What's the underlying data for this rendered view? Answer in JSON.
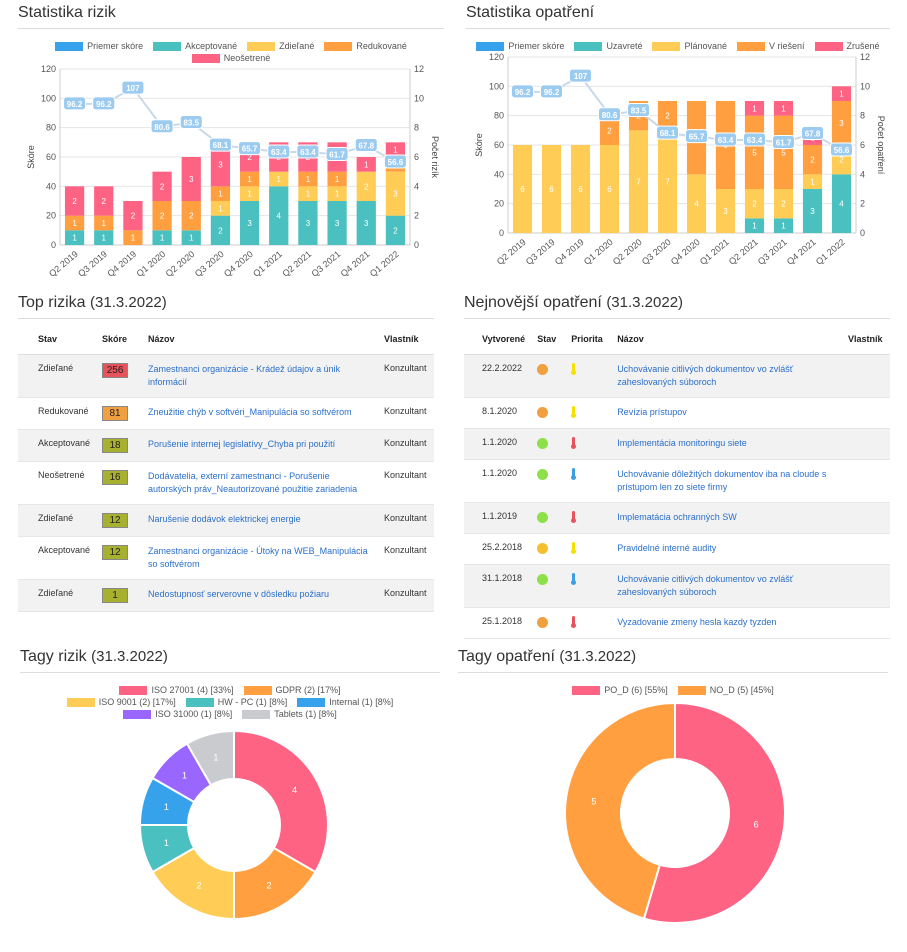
{
  "colors": {
    "avg": "#36a2eb",
    "accepted": "#4bc0c0",
    "shared": "#ffcd56",
    "reduced": "#ff9f40",
    "untreated": "#ff6384",
    "closed": "#4bc0c0",
    "planned": "#ffcd56",
    "solving": "#ff9f40",
    "cancelled": "#ff6384",
    "purple": "#9966ff",
    "grey": "#c9cbcf"
  },
  "risk_stats": {
    "title": "Statistika rizik",
    "chart_data": {
      "type": "bar",
      "stacked": true,
      "categories": [
        "Q2 2019",
        "Q3 2019",
        "Q4 2019",
        "Q1 2020",
        "Q2 2020",
        "Q3 2020",
        "Q4 2020",
        "Q1 2021",
        "Q2 2021",
        "Q3 2021",
        "Q4 2021",
        "Q1 2022"
      ],
      "ylabel": "Skóre",
      "y2label": "Počet rizík",
      "ylim": [
        0,
        120
      ],
      "y2lim": [
        0,
        12
      ],
      "yticks": [
        0,
        20,
        40,
        60,
        80,
        100,
        120
      ],
      "y2ticks": [
        0,
        2,
        4,
        6,
        8,
        10,
        12
      ],
      "series": [
        {
          "name": "Akceptované",
          "color": "#4bc0c0",
          "values": [
            1,
            1,
            0,
            1,
            1,
            2,
            3,
            4,
            3,
            3,
            3,
            2
          ]
        },
        {
          "name": "Zdieľané",
          "color": "#ffcd56",
          "values": [
            0,
            0,
            0,
            0,
            0,
            1,
            1,
            1,
            1,
            1,
            2,
            3
          ]
        },
        {
          "name": "Redukované",
          "color": "#ff9f40",
          "values": [
            1,
            1,
            1,
            2,
            2,
            1,
            1,
            0,
            1,
            1,
            0,
            1
          ]
        },
        {
          "name": "Neošetrené",
          "color": "#ff6384",
          "values": [
            2,
            2,
            2,
            2,
            3,
            3,
            2,
            2,
            2,
            2,
            1,
            1
          ]
        }
      ],
      "line": {
        "name": "Priemer skóre",
        "color": "#36a2eb",
        "values": [
          96.2,
          96.2,
          107,
          80.6,
          83.5,
          68.1,
          65.7,
          63.4,
          63.4,
          61.7,
          67.8,
          56.6
        ]
      },
      "legend": [
        "Priemer skóre",
        "Akceptované",
        "Zdieľané",
        "Redukované",
        "Neošetrené"
      ],
      "legend_position": "top"
    }
  },
  "measure_stats": {
    "title": "Statistika opatření",
    "chart_data": {
      "type": "bar",
      "stacked": true,
      "categories": [
        "Q2 2019",
        "Q3 2019",
        "Q4 2019",
        "Q1 2020",
        "Q2 2020",
        "Q3 2020",
        "Q4 2020",
        "Q1 2021",
        "Q2 2021",
        "Q3 2021",
        "Q4 2021",
        "Q1 2022"
      ],
      "ylabel": "Skóre",
      "y2label": "Počet opatření",
      "ylim": [
        0,
        120
      ],
      "y2lim": [
        0,
        12
      ],
      "yticks": [
        0,
        20,
        40,
        60,
        80,
        100,
        120
      ],
      "y2ticks": [
        0,
        2,
        4,
        6,
        8,
        10,
        12
      ],
      "series": [
        {
          "name": "Uzavreté",
          "color": "#4bc0c0",
          "values": [
            0,
            0,
            0,
            0,
            0,
            0,
            0,
            0,
            1,
            1,
            3,
            4
          ]
        },
        {
          "name": "Plánované",
          "color": "#ffcd56",
          "values": [
            6,
            6,
            6,
            6,
            7,
            7,
            4,
            3,
            2,
            2,
            1,
            2
          ]
        },
        {
          "name": "V riešení",
          "color": "#ff9f40",
          "values": [
            0,
            0,
            0,
            2,
            2,
            2,
            5,
            6,
            5,
            5,
            2,
            3
          ]
        },
        {
          "name": "Zrušené",
          "color": "#ff6384",
          "values": [
            0,
            0,
            0,
            0,
            0,
            0,
            0,
            0,
            1,
            1,
            1,
            1
          ]
        }
      ],
      "line": {
        "name": "Priemer skóre",
        "color": "#36a2eb",
        "values": [
          96.2,
          96.2,
          107,
          80.6,
          83.5,
          68.1,
          65.7,
          63.4,
          63.4,
          61.7,
          67.8,
          56.6
        ]
      },
      "legend": [
        "Priemer skóre",
        "Uzavreté",
        "Plánované",
        "V riešení",
        "Zrušené"
      ],
      "legend_position": "top"
    }
  },
  "top_risks": {
    "title": "Top rizika",
    "date": "(31.3.2022)",
    "headers": {
      "status": "Stav",
      "score": "Skóre",
      "name": "Názov",
      "owner": "Vlastník"
    },
    "rows": [
      {
        "status": "Zdieľané",
        "score": "256",
        "score_color": "#e8525a",
        "name": "Zamestnanci organizácie - Krádež údajov a únik informácií",
        "owner": "Konzultant"
      },
      {
        "status": "Redukované",
        "score": "81",
        "score_color": "#f0a040",
        "name": "Zneužitie chýb v softvéri_Manipulácia so softvérom",
        "owner": "Konzultant"
      },
      {
        "status": "Akceptované",
        "score": "18",
        "score_color": "#a8b030",
        "name": "Porušenie internej legislatívy_Chyba pri použití",
        "owner": "Konzultant"
      },
      {
        "status": "Neošetrené",
        "score": "16",
        "score_color": "#a8b030",
        "name": "Dodávatelia, externí zamestnanci - Porušenie autorských práv_Neautorizované použitie zariadenia",
        "owner": "Konzultant"
      },
      {
        "status": "Zdieľané",
        "score": "12",
        "score_color": "#a8b030",
        "name": "Narušenie dodávok elektrickej energie",
        "owner": "Konzultant"
      },
      {
        "status": "Akceptované",
        "score": "12",
        "score_color": "#a8b030",
        "name": "Zamestnanci organizácie - Útoky na WEB_Manipulácia so softvérom",
        "owner": "Konzultant"
      },
      {
        "status": "Zdieľané",
        "score": "1",
        "score_color": "#a8b030",
        "name": "Nedostupnosť serverovne v dôsledku požiaru",
        "owner": "Konzultant"
      }
    ]
  },
  "latest_measures": {
    "title": "Nejnovější opatření",
    "date": "(31.3.2022)",
    "headers": {
      "created": "Vytvorené",
      "status": "Stav",
      "priority": "Priorita",
      "name": "Názov",
      "owner": "Vlastník"
    },
    "rows": [
      {
        "created": "22.2.2022",
        "status_color": "#f0a040",
        "priority_color": "#f5e000",
        "name": "Uchovávanie citlivých dokumentov vo zvlášť zaheslovaných súboroch"
      },
      {
        "created": "8.1.2020",
        "status_color": "#f0a040",
        "priority_color": "#f5e000",
        "name": "Revízia prístupov"
      },
      {
        "created": "1.1.2020",
        "status_color": "#8ee04a",
        "priority_color": "#e8525a",
        "name": "Implementácia monitoringu siete"
      },
      {
        "created": "1.1.2020",
        "status_color": "#8ee04a",
        "priority_color": "#3aa0e0",
        "name": "Uchovávanie dôležitých dokumentov iba na cloude s prístupom len zo siete firmy"
      },
      {
        "created": "1.1.2019",
        "status_color": "#8ee04a",
        "priority_color": "#e8525a",
        "name": "Implematácia ochranných SW"
      },
      {
        "created": "25.2.2018",
        "status_color": "#f5c030",
        "priority_color": "#f5e000",
        "name": "Pravidelné interné audity"
      },
      {
        "created": "31.1.2018",
        "status_color": "#8ee04a",
        "priority_color": "#3aa0e0",
        "name": "Uchovávanie citlivých dokumentov vo zvlášť zaheslovaných súboroch"
      },
      {
        "created": "25.1.2018",
        "status_color": "#f0a040",
        "priority_color": "#e8525a",
        "name": "Vyzadovanie zmeny hesla kazdy tyzden"
      }
    ]
  },
  "risk_tags": {
    "title": "Tagy rizik",
    "date": "(31.3.2022)",
    "chart_data": {
      "type": "pie",
      "donut": true,
      "legend_position": "top",
      "slices": [
        {
          "label": "ISO 27001 (4) [33%]",
          "value": 4,
          "color": "#ff6384"
        },
        {
          "label": "GDPR (2) [17%]",
          "value": 2,
          "color": "#ff9f40"
        },
        {
          "label": "ISO 9001 (2) [17%]",
          "value": 2,
          "color": "#ffcd56"
        },
        {
          "label": "HW - PC (1) [8%]",
          "value": 1,
          "color": "#4bc0c0"
        },
        {
          "label": "Internal (1) [8%]",
          "value": 1,
          "color": "#36a2eb"
        },
        {
          "label": "ISO 31000 (1) [8%]",
          "value": 1,
          "color": "#9966ff"
        },
        {
          "label": "Tablets (1) [8%]",
          "value": 1,
          "color": "#c9cbcf"
        }
      ]
    }
  },
  "measure_tags": {
    "title": "Tagy opatření",
    "date": "(31.3.2022)",
    "chart_data": {
      "type": "pie",
      "donut": true,
      "legend_position": "top",
      "slices": [
        {
          "label": "PO_D (6) [55%]",
          "value": 6,
          "color": "#ff6384"
        },
        {
          "label": "NO_D (5) [45%]",
          "value": 5,
          "color": "#ff9f40"
        }
      ]
    }
  }
}
